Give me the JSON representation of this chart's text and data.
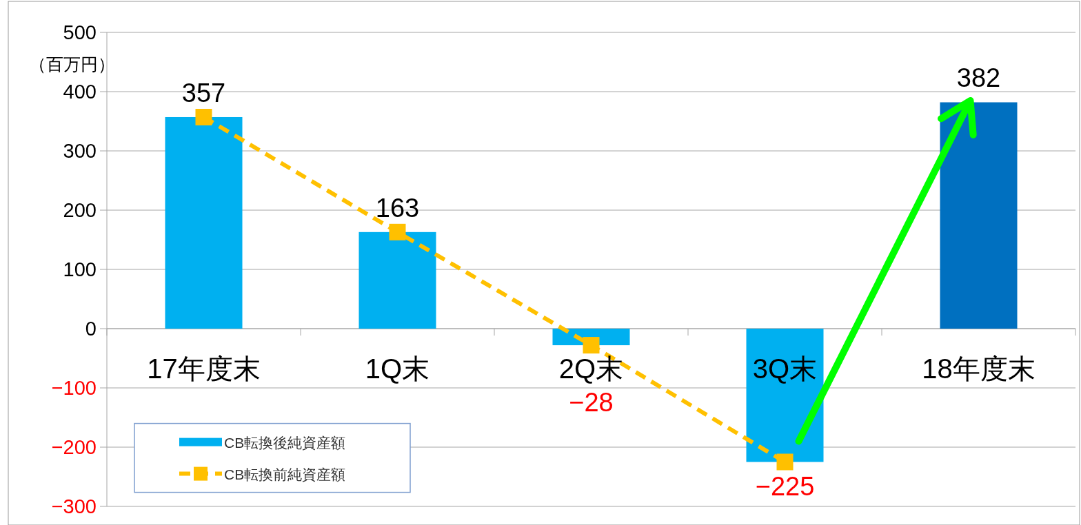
{
  "chart_data": {
    "type": "bar",
    "ylabel": "（百万円）",
    "categories": [
      "17年度末",
      "1Q末",
      "2Q末",
      "3Q末",
      "18年度末"
    ],
    "series": [
      {
        "name": "CB転換後純資産額",
        "colors": [
          "#00b0f0",
          "#00b0f0",
          "#00b0f0",
          "#00b0f0",
          "#0070c0"
        ],
        "values": [
          357,
          163,
          -28,
          -225,
          382
        ],
        "value_labels": [
          "357",
          "163",
          "−28",
          "−225",
          "382"
        ]
      },
      {
        "name": "CB転換前純資産額",
        "type": "line",
        "color": "#ffc000",
        "values": [
          357,
          163,
          -28,
          -225,
          null
        ],
        "marker": "square",
        "line_style": "dashed"
      }
    ],
    "ylim": [
      -300,
      500
    ],
    "yticks": [
      500,
      400,
      300,
      200,
      100,
      0,
      {
        "value": -100,
        "label": "−100"
      },
      {
        "value": -200,
        "label": "−200"
      },
      {
        "value": -300,
        "label": "−300"
      }
    ],
    "grid": "y",
    "legend": "bottom left"
  }
}
